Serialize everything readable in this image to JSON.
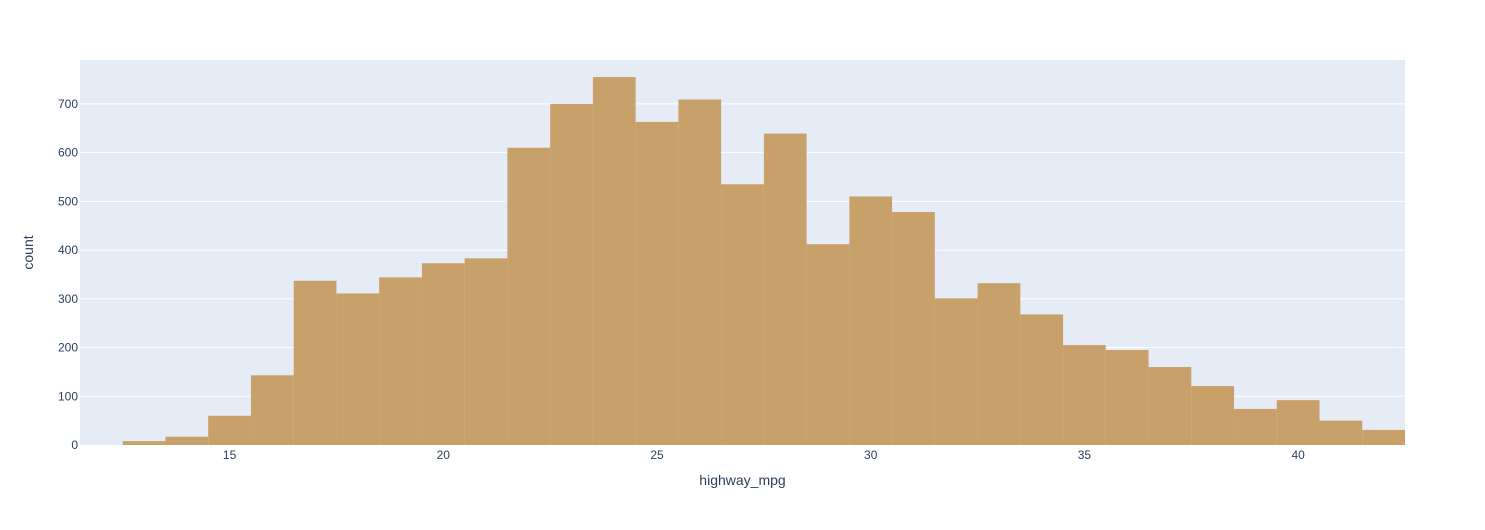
{
  "colors": {
    "plot_background": "#e5ecf6",
    "gridline": "#ffffff",
    "bar_fill": "#c8a06a",
    "text": "#2a3f5f"
  },
  "chart_data": {
    "type": "bar",
    "subtype": "histogram",
    "xlabel": "highway_mpg",
    "ylabel": "count",
    "xlim": [
      11.5,
      42.5
    ],
    "ylim": [
      0,
      790
    ],
    "bin_width": 1,
    "bin_starts": [
      12.5,
      13.5,
      14.5,
      15.5,
      16.5,
      17.5,
      18.5,
      19.5,
      20.5,
      21.5,
      22.5,
      23.5,
      24.5,
      25.5,
      26.5,
      27.5,
      28.5,
      29.5,
      30.5,
      31.5,
      32.5,
      33.5,
      34.5,
      35.5,
      36.5,
      37.5,
      38.5,
      39.5,
      40.5,
      41.5
    ],
    "values": [
      8,
      17,
      60,
      143,
      337,
      311,
      344,
      373,
      383,
      610,
      700,
      755,
      663,
      709,
      535,
      639,
      412,
      510,
      478,
      301,
      332,
      268,
      205,
      195,
      160,
      121,
      74,
      92,
      50,
      31
    ],
    "x_ticks": [
      15,
      20,
      25,
      30,
      35,
      40
    ],
    "x_tick_labels": [
      "15",
      "20",
      "25",
      "30",
      "35",
      "40"
    ],
    "y_ticks": [
      0,
      100,
      200,
      300,
      400,
      500,
      600,
      700
    ],
    "y_tick_labels": [
      "0",
      "100",
      "200",
      "300",
      "400",
      "500",
      "600",
      "700"
    ],
    "grid": true,
    "legend": false
  }
}
